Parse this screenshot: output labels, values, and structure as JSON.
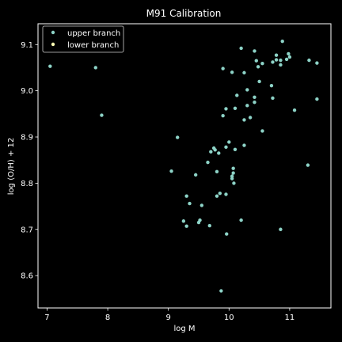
{
  "chart_data": {
    "type": "scatter",
    "title": "M91 Calibration",
    "xlabel": "log M",
    "ylabel": "log (O/H) + 12",
    "xlim": [
      6.85,
      11.68
    ],
    "ylim": [
      8.53,
      9.145
    ],
    "xticks": [
      7,
      8,
      9,
      10,
      11
    ],
    "yticks": [
      8.6,
      8.7,
      8.8,
      8.9,
      9.0,
      9.1
    ],
    "grid": false,
    "legend_position": "top-left",
    "background": "#000000",
    "foreground": "#ffffff",
    "series": [
      {
        "name": "upper branch",
        "color": "#8dd3c7",
        "points": [
          [
            7.05,
            9.053
          ],
          [
            7.8,
            9.05
          ],
          [
            7.9,
            8.947
          ],
          [
            9.15,
            8.899
          ],
          [
            9.05,
            8.826
          ],
          [
            9.25,
            8.718
          ],
          [
            9.3,
            8.707
          ],
          [
            9.3,
            8.772
          ],
          [
            9.35,
            8.756
          ],
          [
            9.45,
            8.818
          ],
          [
            9.5,
            8.715
          ],
          [
            9.52,
            8.72
          ],
          [
            9.55,
            8.752
          ],
          [
            9.65,
            8.845
          ],
          [
            9.68,
            8.708
          ],
          [
            9.7,
            8.868
          ],
          [
            9.75,
            8.876
          ],
          [
            9.77,
            8.872
          ],
          [
            9.8,
            8.825
          ],
          [
            9.8,
            8.772
          ],
          [
            9.85,
            8.778
          ],
          [
            9.83,
            8.865
          ],
          [
            9.87,
            8.567
          ],
          [
            9.9,
            9.048
          ],
          [
            9.9,
            8.946
          ],
          [
            9.95,
            8.961
          ],
          [
            9.95,
            8.878
          ],
          [
            9.95,
            8.776
          ],
          [
            9.96,
            8.69
          ],
          [
            10.0,
            8.889
          ],
          [
            10.05,
            9.04
          ],
          [
            10.05,
            8.81
          ],
          [
            10.05,
            8.815
          ],
          [
            10.07,
            8.822
          ],
          [
            10.07,
            8.832
          ],
          [
            10.08,
            8.8
          ],
          [
            10.1,
            8.873
          ],
          [
            10.1,
            8.962
          ],
          [
            10.13,
            8.99
          ],
          [
            10.2,
            9.092
          ],
          [
            10.2,
            8.72
          ],
          [
            10.25,
            9.039
          ],
          [
            10.25,
            8.937
          ],
          [
            10.25,
            8.882
          ],
          [
            10.3,
            8.968
          ],
          [
            10.3,
            9.002
          ],
          [
            10.35,
            8.942
          ],
          [
            10.42,
            9.086
          ],
          [
            10.42,
            8.975
          ],
          [
            10.42,
            8.986
          ],
          [
            10.45,
            9.065
          ],
          [
            10.48,
            9.052
          ],
          [
            10.5,
            9.02
          ],
          [
            10.55,
            9.059
          ],
          [
            10.55,
            8.913
          ],
          [
            10.7,
            9.011
          ],
          [
            10.72,
            8.984
          ],
          [
            10.72,
            9.062
          ],
          [
            10.78,
            9.077
          ],
          [
            10.78,
            9.067
          ],
          [
            10.85,
            9.066
          ],
          [
            10.85,
            9.056
          ],
          [
            10.85,
            8.7
          ],
          [
            10.88,
            9.107
          ],
          [
            10.95,
            9.068
          ],
          [
            10.98,
            9.08
          ],
          [
            11.0,
            9.073
          ],
          [
            11.08,
            8.958
          ],
          [
            11.3,
            8.839
          ],
          [
            11.32,
            9.066
          ],
          [
            11.45,
            9.06
          ],
          [
            11.45,
            8.982
          ]
        ]
      },
      {
        "name": "lower branch",
        "color": "#ffffb3",
        "points": []
      }
    ]
  }
}
